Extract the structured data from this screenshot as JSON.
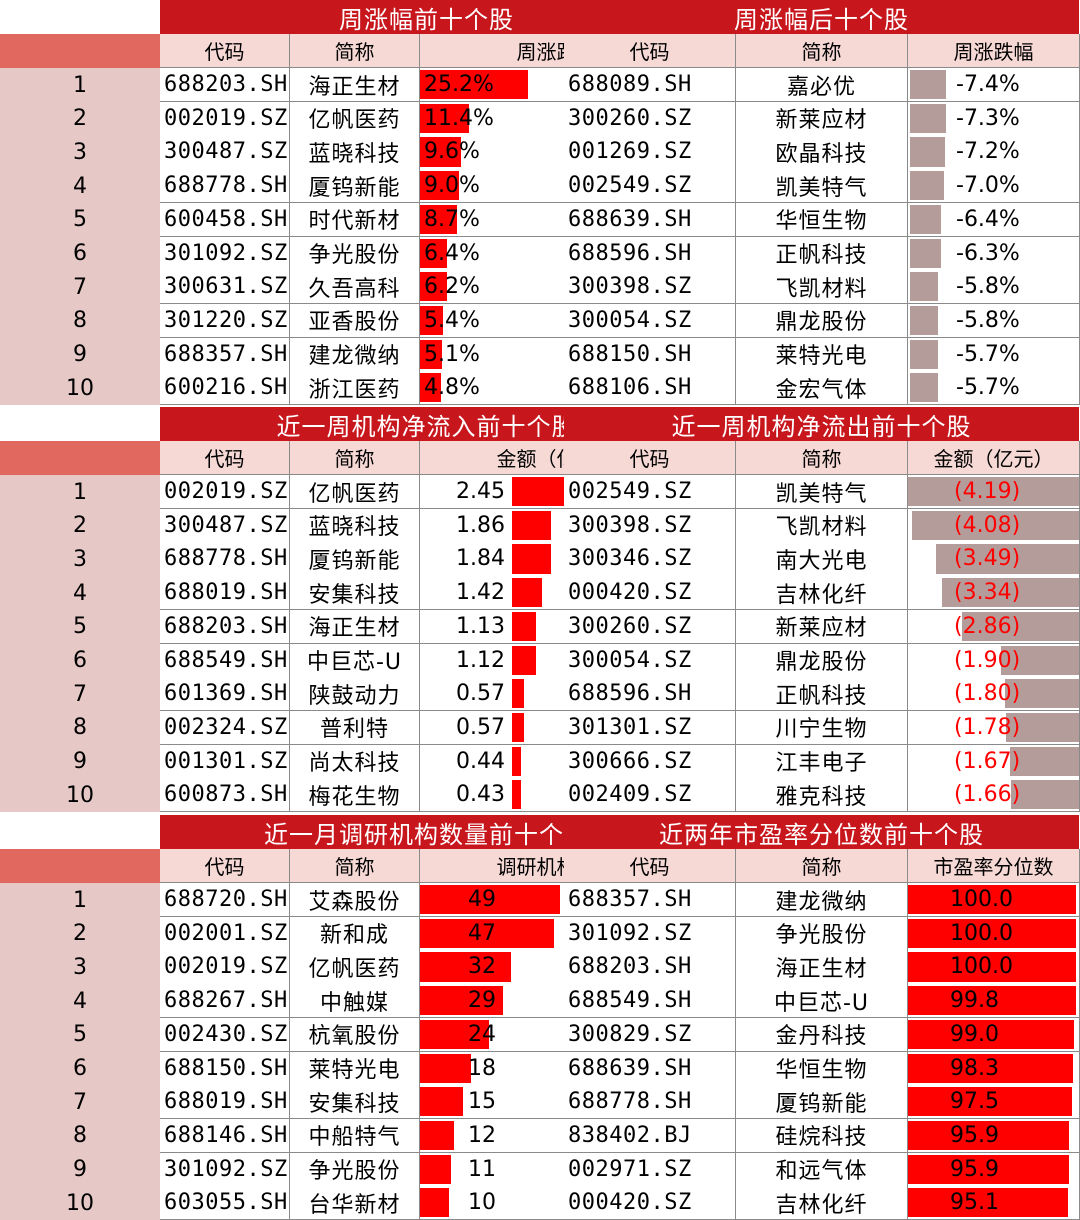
{
  "colors": {
    "title_bg": "#c8161d",
    "header_bg": "#f6d9d5",
    "index_bg": "#e6c9c6",
    "index_head_bg": "#e0685e",
    "bar_positive": "#ff0000",
    "bar_negative": "#b49c9a",
    "negative_text": "#ff0000"
  },
  "ranks": [
    "1",
    "2",
    "3",
    "4",
    "5",
    "6",
    "7",
    "8",
    "9",
    "10"
  ],
  "sections": [
    {
      "left": {
        "title": "周涨幅前十个股",
        "headers": [
          "代码",
          "简称",
          "周涨跌幅"
        ],
        "bar": "positive",
        "max": 25.2,
        "rows": [
          {
            "code": "688203.SH",
            "name": "海正生材",
            "value": 25.2,
            "text": "25.2%"
          },
          {
            "code": "002019.SZ",
            "name": "亿帆医药",
            "value": 11.4,
            "text": "11.4%"
          },
          {
            "code": "300487.SZ",
            "name": "蓝晓科技",
            "value": 9.6,
            "text": "9.6%"
          },
          {
            "code": "688778.SH",
            "name": "厦钨新能",
            "value": 9.0,
            "text": "9.0%"
          },
          {
            "code": "600458.SH",
            "name": "时代新材",
            "value": 8.7,
            "text": "8.7%"
          },
          {
            "code": "301092.SZ",
            "name": "争光股份",
            "value": 6.4,
            "text": "6.4%"
          },
          {
            "code": "300631.SZ",
            "name": "久吾高科",
            "value": 6.2,
            "text": "6.2%"
          },
          {
            "code": "301220.SZ",
            "name": "亚香股份",
            "value": 5.4,
            "text": "5.4%"
          },
          {
            "code": "688357.SH",
            "name": "建龙微纳",
            "value": 5.1,
            "text": "5.1%"
          },
          {
            "code": "600216.SH",
            "name": "浙江医药",
            "value": 4.8,
            "text": "4.8%"
          }
        ]
      },
      "right": {
        "title": "周涨幅后十个股",
        "headers": [
          "代码",
          "简称",
          "周涨跌幅"
        ],
        "bar": "negative",
        "max": 7.4,
        "rows": [
          {
            "code": "688089.SH",
            "name": "嘉必优",
            "value": -7.4,
            "text": "-7.4%"
          },
          {
            "code": "300260.SZ",
            "name": "新莱应材",
            "value": -7.3,
            "text": "-7.3%"
          },
          {
            "code": "001269.SZ",
            "name": "欧晶科技",
            "value": -7.2,
            "text": "-7.2%"
          },
          {
            "code": "002549.SZ",
            "name": "凯美特气",
            "value": -7.0,
            "text": "-7.0%"
          },
          {
            "code": "688639.SH",
            "name": "华恒生物",
            "value": -6.4,
            "text": "-6.4%"
          },
          {
            "code": "688596.SH",
            "name": "正帆科技",
            "value": -6.3,
            "text": "-6.3%"
          },
          {
            "code": "300398.SZ",
            "name": "飞凯材料",
            "value": -5.8,
            "text": "-5.8%"
          },
          {
            "code": "300054.SZ",
            "name": "鼎龙股份",
            "value": -5.8,
            "text": "-5.8%"
          },
          {
            "code": "688150.SH",
            "name": "莱特光电",
            "value": -5.7,
            "text": "-5.7%"
          },
          {
            "code": "688106.SH",
            "name": "金宏气体",
            "value": -5.7,
            "text": "-5.7%"
          }
        ]
      }
    },
    {
      "left": {
        "title": "近一周机构净流入前十个股",
        "headers": [
          "代码",
          "简称",
          "金额（亿元）"
        ],
        "bar": "positive",
        "max": 2.45,
        "rows": [
          {
            "code": "002019.SZ",
            "name": "亿帆医药",
            "value": 2.45,
            "text": "2.45"
          },
          {
            "code": "300487.SZ",
            "name": "蓝晓科技",
            "value": 1.86,
            "text": "1.86"
          },
          {
            "code": "688778.SH",
            "name": "厦钨新能",
            "value": 1.84,
            "text": "1.84"
          },
          {
            "code": "688019.SH",
            "name": "安集科技",
            "value": 1.42,
            "text": "1.42"
          },
          {
            "code": "688203.SH",
            "name": "海正生材",
            "value": 1.13,
            "text": "1.13"
          },
          {
            "code": "688549.SH",
            "name": "中巨芯-U",
            "value": 1.12,
            "text": "1.12"
          },
          {
            "code": "601369.SH",
            "name": "陕鼓动力",
            "value": 0.57,
            "text": "0.57"
          },
          {
            "code": "002324.SZ",
            "name": "普利特",
            "value": 0.57,
            "text": "0.57"
          },
          {
            "code": "001301.SZ",
            "name": "尚太科技",
            "value": 0.44,
            "text": "0.44"
          },
          {
            "code": "600873.SH",
            "name": "梅花生物",
            "value": 0.43,
            "text": "0.43"
          }
        ]
      },
      "right": {
        "title": "近一周机构净流出前十个股",
        "headers": [
          "代码",
          "简称",
          "金额（亿元）"
        ],
        "bar": "negative",
        "max": 4.19,
        "rows": [
          {
            "code": "002549.SZ",
            "name": "凯美特气",
            "value": -4.19,
            "text": "(4.19)"
          },
          {
            "code": "300398.SZ",
            "name": "飞凯材料",
            "value": -4.08,
            "text": "(4.08)"
          },
          {
            "code": "300346.SZ",
            "name": "南大光电",
            "value": -3.49,
            "text": "(3.49)"
          },
          {
            "code": "000420.SZ",
            "name": "吉林化纤",
            "value": -3.34,
            "text": "(3.34)"
          },
          {
            "code": "300260.SZ",
            "name": "新莱应材",
            "value": -2.86,
            "text": "(2.86)"
          },
          {
            "code": "300054.SZ",
            "name": "鼎龙股份",
            "value": -1.9,
            "text": "(1.90)"
          },
          {
            "code": "688596.SH",
            "name": "正帆科技",
            "value": -1.8,
            "text": "(1.80)"
          },
          {
            "code": "301301.SZ",
            "name": "川宁生物",
            "value": -1.78,
            "text": "(1.78)"
          },
          {
            "code": "300666.SZ",
            "name": "江丰电子",
            "value": -1.67,
            "text": "(1.67)"
          },
          {
            "code": "002409.SZ",
            "name": "雅克科技",
            "value": -1.66,
            "text": "(1.66)"
          }
        ]
      }
    },
    {
      "left": {
        "title": "近一月调研机构数量前十个股",
        "headers": [
          "代码",
          "简称",
          "调研机构数量"
        ],
        "bar": "positive",
        "max": 49,
        "rows": [
          {
            "code": "688720.SH",
            "name": "艾森股份",
            "value": 49,
            "text": "49"
          },
          {
            "code": "002001.SZ",
            "name": "新和成",
            "value": 47,
            "text": "47"
          },
          {
            "code": "002019.SZ",
            "name": "亿帆医药",
            "value": 32,
            "text": "32"
          },
          {
            "code": "688267.SH",
            "name": "中触媒",
            "value": 29,
            "text": "29"
          },
          {
            "code": "002430.SZ",
            "name": "杭氧股份",
            "value": 24,
            "text": "24"
          },
          {
            "code": "688150.SH",
            "name": "莱特光电",
            "value": 18,
            "text": "18"
          },
          {
            "code": "688019.SH",
            "name": "安集科技",
            "value": 15,
            "text": "15"
          },
          {
            "code": "688146.SH",
            "name": "中船特气",
            "value": 12,
            "text": "12"
          },
          {
            "code": "301092.SZ",
            "name": "争光股份",
            "value": 11,
            "text": "11"
          },
          {
            "code": "603055.SH",
            "name": "台华新材",
            "value": 10,
            "text": "10"
          }
        ]
      },
      "right": {
        "title": "近两年市盈率分位数前十个股",
        "headers": [
          "代码",
          "简称",
          "市盈率分位数"
        ],
        "bar": "positive",
        "max": 100,
        "rows": [
          {
            "code": "688357.SH",
            "name": "建龙微纳",
            "value": 100.0,
            "text": "100.0"
          },
          {
            "code": "301092.SZ",
            "name": "争光股份",
            "value": 100.0,
            "text": "100.0"
          },
          {
            "code": "688203.SH",
            "name": "海正生材",
            "value": 100.0,
            "text": "100.0"
          },
          {
            "code": "688549.SH",
            "name": "中巨芯-U",
            "value": 99.8,
            "text": "99.8"
          },
          {
            "code": "300829.SZ",
            "name": "金丹科技",
            "value": 99.0,
            "text": "99.0"
          },
          {
            "code": "688639.SH",
            "name": "华恒生物",
            "value": 98.3,
            "text": "98.3"
          },
          {
            "code": "688778.SH",
            "name": "厦钨新能",
            "value": 97.5,
            "text": "97.5"
          },
          {
            "code": "838402.BJ",
            "name": "硅烷科技",
            "value": 95.9,
            "text": "95.9"
          },
          {
            "code": "002971.SZ",
            "name": "和远气体",
            "value": 95.9,
            "text": "95.9"
          },
          {
            "code": "000420.SZ",
            "name": "吉林化纤",
            "value": 95.1,
            "text": "95.1"
          }
        ]
      }
    }
  ]
}
